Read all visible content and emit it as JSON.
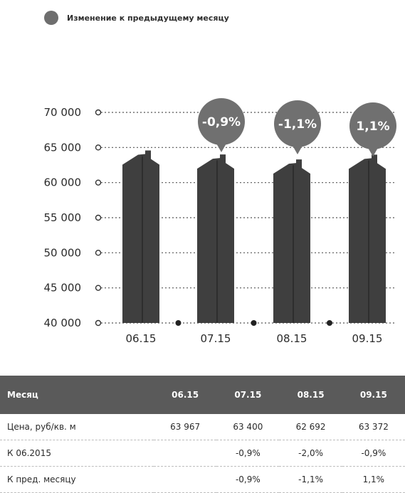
{
  "legend": {
    "label": "Изменение к предыдущему месяцу"
  },
  "colors": {
    "bar": "#3f3f3f",
    "bubble": "#707070",
    "grid": "#555555",
    "header_bg": "#5a5a5a"
  },
  "chart_data": {
    "type": "bar",
    "categories": [
      "06.15",
      "07.15",
      "08.15",
      "09.15"
    ],
    "values": [
      63967,
      63400,
      62692,
      63372
    ],
    "annotations": [
      "",
      "-0,9%",
      "-1,1%",
      "1,1%"
    ],
    "yticks": [
      40000,
      45000,
      50000,
      55000,
      60000,
      65000,
      70000
    ],
    "ytick_labels": [
      "40 000",
      "45 000",
      "50 000",
      "55 000",
      "60 000",
      "65 000",
      "70 000"
    ],
    "ylim": [
      40000,
      70000
    ],
    "grid": true,
    "legend_position": "top-left"
  },
  "table": {
    "header": [
      "Месяц",
      "06.15",
      "07.15",
      "08.15",
      "09.15"
    ],
    "rows": [
      [
        "Цена, руб/кв. м",
        "63 967",
        "63 400",
        "62 692",
        "63 372"
      ],
      [
        "К 06.2015",
        "",
        "-0,9%",
        "-2,0%",
        "-0,9%"
      ],
      [
        "К пред. месяцу",
        "",
        "-0,9%",
        "-1,1%",
        "1,1%"
      ]
    ]
  }
}
